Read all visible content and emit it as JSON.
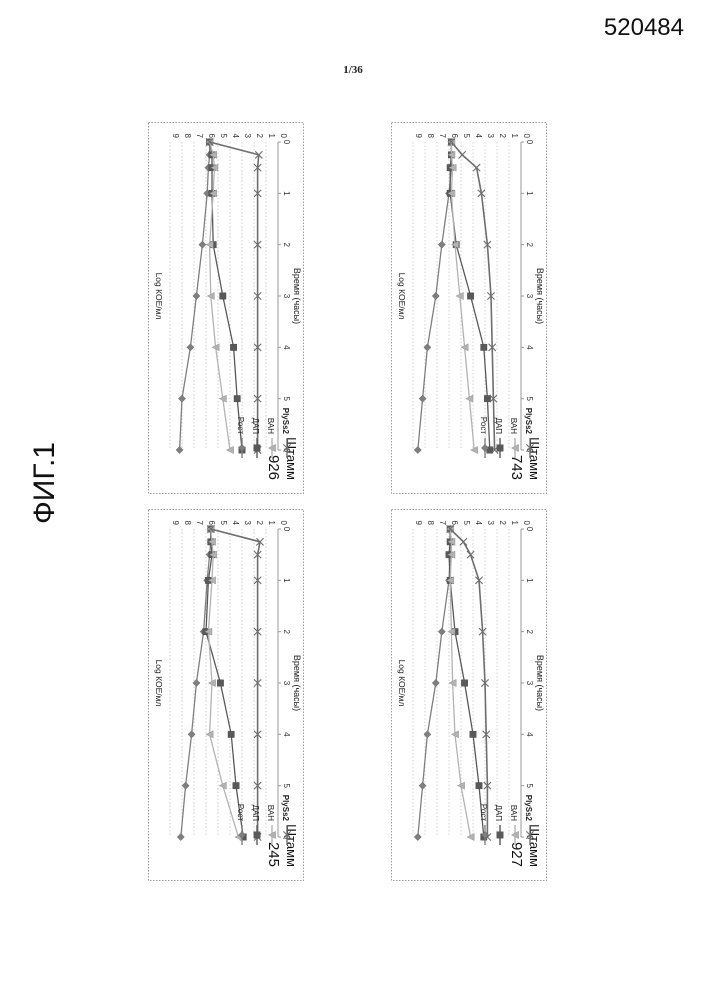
{
  "document": {
    "number": "520484",
    "page": "1/36",
    "figure_label": "ФИГ.1"
  },
  "colors": {
    "Рост": "#7f7f7f",
    "ДАП": "#595959",
    "ВАН": "#b3b3b3",
    "PlySs2": "#6e6e6e"
  },
  "chart_data": [
    {
      "type": "line",
      "title": "Штамм 245",
      "title_parts": [
        "Штамм",
        "245"
      ],
      "xlabel": "Время (часы)",
      "ylabel": "Log КОЕ/мл",
      "xlim": [
        0,
        6
      ],
      "ylim": [
        0,
        9
      ],
      "x_ticks": [
        "0",
        "1",
        "2",
        "3",
        "4",
        "5",
        "6"
      ],
      "y_ticks": [
        "0",
        "1",
        "2",
        "3",
        "4",
        "5",
        "6",
        "7",
        "8",
        "9"
      ],
      "grid": true,
      "legend_position": "right",
      "series": [
        {
          "name": "Рост",
          "marker": "diamond",
          "x": [
            0,
            0.25,
            0.5,
            1,
            2,
            3,
            4,
            5,
            6
          ],
          "y": [
            5.6,
            5.6,
            5.7,
            5.9,
            6.2,
            6.8,
            7.2,
            7.7,
            8.1
          ]
        },
        {
          "name": "ДАП",
          "marker": "square",
          "x": [
            0,
            0.25,
            0.5,
            1,
            2,
            3,
            4,
            5,
            6
          ],
          "y": [
            5.6,
            5.6,
            5.5,
            5.8,
            6.0,
            4.8,
            3.9,
            3.5,
            2.9
          ]
        },
        {
          "name": "ВАН",
          "marker": "triangle",
          "x": [
            0,
            0.25,
            0.5,
            1,
            2,
            3,
            4,
            5,
            6
          ],
          "y": [
            5.6,
            5.5,
            5.4,
            5.5,
            5.8,
            5.5,
            5.7,
            4.6,
            3.3
          ]
        },
        {
          "name": "PlySs2",
          "marker": "x",
          "x": [
            0,
            0.25,
            0.5,
            1,
            2,
            3,
            4,
            5,
            6
          ],
          "y": [
            5.6,
            1.5,
            1.7,
            1.7,
            1.7,
            1.7,
            1.7,
            1.7,
            1.7
          ]
        }
      ]
    },
    {
      "type": "line",
      "title": "Штамм 743",
      "title_parts": [
        "Штамм",
        "743"
      ],
      "xlabel": "Время (часы)",
      "ylabel": "Log КОЕ/мл",
      "xlim": [
        0,
        6
      ],
      "ylim": [
        0,
        9
      ],
      "x_ticks": [
        "0",
        "1",
        "2",
        "3",
        "4",
        "5",
        "6"
      ],
      "y_ticks": [
        "0",
        "1",
        "2",
        "3",
        "4",
        "5",
        "6",
        "7",
        "8",
        "9"
      ],
      "grid": true,
      "legend_position": "right",
      "series": [
        {
          "name": "Рост",
          "marker": "diamond",
          "x": [
            0,
            0.25,
            0.5,
            1,
            2,
            3,
            4,
            5,
            6
          ],
          "y": [
            5.8,
            5.8,
            5.8,
            6.0,
            6.6,
            7.1,
            7.8,
            8.2,
            8.6
          ]
        },
        {
          "name": "ДАП",
          "marker": "square",
          "x": [
            0,
            0.25,
            0.5,
            1,
            2,
            3,
            4,
            5,
            6
          ],
          "y": [
            5.8,
            5.8,
            5.9,
            5.9,
            5.4,
            4.2,
            3.1,
            2.8,
            2.6
          ]
        },
        {
          "name": "ВАН",
          "marker": "triangle",
          "x": [
            0,
            0.25,
            0.5,
            1,
            2,
            3,
            4,
            5,
            6
          ],
          "y": [
            5.8,
            5.8,
            5.7,
            5.8,
            5.5,
            5.1,
            4.7,
            4.3,
            3.9
          ]
        },
        {
          "name": "PlySs2",
          "marker": "x",
          "x": [
            0,
            0.25,
            0.5,
            1,
            2,
            3,
            4,
            5,
            6
          ],
          "y": [
            5.8,
            4.9,
            3.7,
            3.3,
            2.8,
            2.5,
            2.4,
            2.3,
            2.2
          ]
        }
      ]
    },
    {
      "type": "line",
      "title": "Штамм 926",
      "title_parts": [
        "Штамм",
        "926"
      ],
      "xlabel": "Время (часы)",
      "ylabel": "Log КОЕ/мл",
      "xlim": [
        0,
        6
      ],
      "ylim": [
        0,
        9
      ],
      "x_ticks": [
        "0",
        "1",
        "2",
        "3",
        "4",
        "5",
        "6"
      ],
      "y_ticks": [
        "0",
        "1",
        "2",
        "3",
        "4",
        "5",
        "6",
        "7",
        "8",
        "9"
      ],
      "grid": true,
      "legend_position": "right",
      "series": [
        {
          "name": "Рост",
          "marker": "diamond",
          "x": [
            0,
            0.25,
            0.5,
            1,
            2,
            3,
            4,
            5,
            6
          ],
          "y": [
            5.7,
            5.7,
            5.8,
            5.9,
            6.3,
            6.8,
            7.3,
            8.0,
            8.2
          ]
        },
        {
          "name": "ДАП",
          "marker": "square",
          "x": [
            0,
            0.25,
            0.5,
            1,
            2,
            3,
            4,
            5,
            6
          ],
          "y": [
            5.7,
            5.5,
            5.5,
            5.5,
            5.4,
            4.6,
            3.7,
            3.4,
            3.0
          ]
        },
        {
          "name": "ВАН",
          "marker": "triangle",
          "x": [
            0,
            0.25,
            0.5,
            1,
            2,
            3,
            4,
            5,
            6
          ],
          "y": [
            5.7,
            5.4,
            5.3,
            5.4,
            5.7,
            5.6,
            5.2,
            4.6,
            4.0
          ]
        },
        {
          "name": "PlySs2",
          "marker": "x",
          "x": [
            0,
            0.25,
            0.5,
            1,
            2,
            3,
            4,
            5,
            6
          ],
          "y": [
            5.7,
            1.6,
            1.7,
            1.7,
            1.7,
            1.7,
            1.7,
            1.7,
            1.7
          ]
        }
      ]
    },
    {
      "type": "line",
      "title": "Штамм 927",
      "title_parts": [
        "Штамм",
        "927"
      ],
      "xlabel": "Время (часы)",
      "ylabel": "Log КОЕ/мл",
      "xlim": [
        0,
        6
      ],
      "ylim": [
        0,
        9
      ],
      "x_ticks": [
        "0",
        "1",
        "2",
        "3",
        "4",
        "5",
        "6"
      ],
      "y_ticks": [
        "0",
        "1",
        "2",
        "3",
        "4",
        "5",
        "6",
        "7",
        "8",
        "9"
      ],
      "grid": true,
      "legend_position": "right",
      "series": [
        {
          "name": "Рост",
          "marker": "diamond",
          "x": [
            0,
            0.25,
            0.5,
            1,
            2,
            3,
            4,
            5,
            6
          ],
          "y": [
            5.9,
            5.9,
            5.9,
            6.0,
            6.6,
            7.1,
            7.8,
            8.2,
            8.6
          ]
        },
        {
          "name": "ДАП",
          "marker": "square",
          "x": [
            0,
            0.25,
            0.5,
            1,
            2,
            3,
            4,
            5,
            6
          ],
          "y": [
            5.9,
            5.9,
            6.0,
            5.9,
            5.5,
            4.7,
            4.0,
            3.5,
            3.1
          ]
        },
        {
          "name": "ВАН",
          "marker": "triangle",
          "x": [
            0,
            0.25,
            0.5,
            1,
            2,
            3,
            4,
            5,
            6
          ],
          "y": [
            5.9,
            5.8,
            5.8,
            5.9,
            5.8,
            5.7,
            5.5,
            5.0,
            4.2
          ]
        },
        {
          "name": "PlySs2",
          "marker": "x",
          "x": [
            0,
            0.25,
            0.5,
            1,
            2,
            3,
            4,
            5,
            6
          ],
          "y": [
            5.9,
            4.8,
            4.2,
            3.5,
            3.2,
            3.0,
            2.9,
            2.8,
            2.8
          ]
        }
      ]
    }
  ]
}
